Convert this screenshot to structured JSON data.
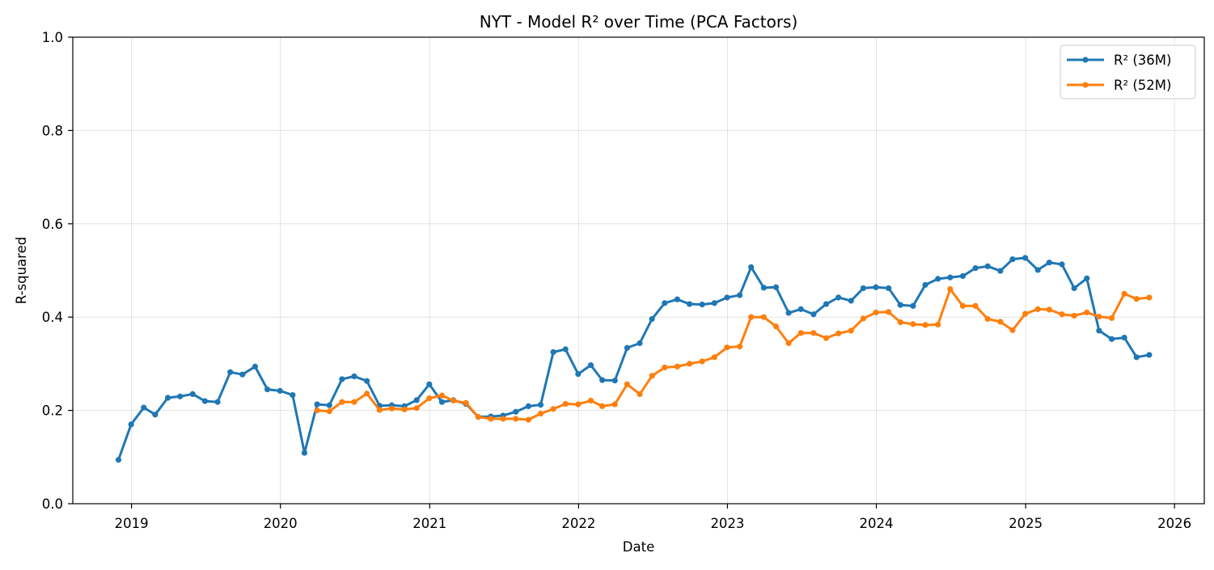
{
  "chart_data": {
    "type": "line",
    "title": "NYT - Model R² over Time (PCA Factors)",
    "xlabel": "Date",
    "ylabel": "R-squared",
    "xlim": [
      "2018-08-10",
      "2026-03-15"
    ],
    "ylim": [
      0,
      1
    ],
    "x_ticks": [
      {
        "label": "2019",
        "date": "2019-01-01"
      },
      {
        "label": "2020",
        "date": "2020-01-01"
      },
      {
        "label": "2021",
        "date": "2021-01-01"
      },
      {
        "label": "2022",
        "date": "2022-01-01"
      },
      {
        "label": "2023",
        "date": "2023-01-01"
      },
      {
        "label": "2024",
        "date": "2024-01-01"
      },
      {
        "label": "2025",
        "date": "2025-01-01"
      },
      {
        "label": "2026",
        "date": "2026-01-01"
      }
    ],
    "y_ticks": [
      "0.0",
      "0.2",
      "0.4",
      "0.6",
      "0.8",
      "1.0"
    ],
    "grid": true,
    "legend_position": "top-right",
    "series": [
      {
        "name": "R² (36M)",
        "color": "#1f77b4",
        "x": [
          "2018-11-30",
          "2018-12-31",
          "2019-01-31",
          "2019-02-28",
          "2019-03-31",
          "2019-04-30",
          "2019-05-31",
          "2019-06-30",
          "2019-07-31",
          "2019-08-31",
          "2019-09-30",
          "2019-10-31",
          "2019-11-30",
          "2019-12-31",
          "2020-01-31",
          "2020-02-29",
          "2020-03-31",
          "2020-04-30",
          "2020-05-31",
          "2020-06-30",
          "2020-07-31",
          "2020-08-31",
          "2020-09-30",
          "2020-10-31",
          "2020-11-30",
          "2020-12-31",
          "2021-01-31",
          "2021-02-28",
          "2021-03-31",
          "2021-04-30",
          "2021-05-31",
          "2021-06-30",
          "2021-07-31",
          "2021-08-31",
          "2021-09-30",
          "2021-10-31",
          "2021-11-30",
          "2021-12-31",
          "2022-01-31",
          "2022-02-28",
          "2022-03-31",
          "2022-04-30",
          "2022-05-31",
          "2022-06-30",
          "2022-07-31",
          "2022-08-31",
          "2022-09-30",
          "2022-10-31",
          "2022-11-30",
          "2022-12-31",
          "2023-01-31",
          "2023-02-28",
          "2023-03-31",
          "2023-04-30",
          "2023-05-31",
          "2023-06-30",
          "2023-07-31",
          "2023-08-31",
          "2023-09-30",
          "2023-10-31",
          "2023-11-30",
          "2023-12-31",
          "2024-01-31",
          "2024-02-29",
          "2024-03-31",
          "2024-04-30",
          "2024-05-31",
          "2024-06-30",
          "2024-07-31",
          "2024-08-31",
          "2024-09-30",
          "2024-10-31",
          "2024-11-30",
          "2024-12-31",
          "2025-01-31",
          "2025-02-28",
          "2025-03-31",
          "2025-04-30",
          "2025-05-31",
          "2025-06-30",
          "2025-07-31",
          "2025-08-31",
          "2025-09-30",
          "2025-10-31"
        ],
        "y": [
          0.094,
          0.17,
          0.206,
          0.191,
          0.227,
          0.23,
          0.235,
          0.22,
          0.218,
          0.282,
          0.277,
          0.294,
          0.245,
          0.242,
          0.233,
          0.109,
          0.213,
          0.211,
          0.267,
          0.273,
          0.263,
          0.21,
          0.211,
          0.209,
          0.222,
          0.256,
          0.218,
          0.222,
          0.214,
          0.186,
          0.187,
          0.189,
          0.197,
          0.209,
          0.212,
          0.325,
          0.331,
          0.278,
          0.297,
          0.265,
          0.264,
          0.334,
          0.344,
          0.396,
          0.43,
          0.438,
          0.428,
          0.427,
          0.43,
          0.442,
          0.447,
          0.507,
          0.463,
          0.464,
          0.409,
          0.417,
          0.406,
          0.428,
          0.442,
          0.435,
          0.462,
          0.464,
          0.462,
          0.426,
          0.424,
          0.469,
          0.482,
          0.485,
          0.488,
          0.505,
          0.509,
          0.499,
          0.524,
          0.527,
          0.501,
          0.517,
          0.513,
          0.462,
          0.483,
          0.371,
          0.353,
          0.356,
          0.314,
          0.319
        ]
      },
      {
        "name": "R² (52M)",
        "color": "#ff7f0e",
        "x": [
          "2020-03-31",
          "2020-04-30",
          "2020-05-31",
          "2020-06-30",
          "2020-07-31",
          "2020-08-31",
          "2020-09-30",
          "2020-10-31",
          "2020-11-30",
          "2020-12-31",
          "2021-01-31",
          "2021-02-28",
          "2021-03-31",
          "2021-04-30",
          "2021-05-31",
          "2021-06-30",
          "2021-07-31",
          "2021-08-31",
          "2021-09-30",
          "2021-10-31",
          "2021-11-30",
          "2021-12-31",
          "2022-01-31",
          "2022-02-28",
          "2022-03-31",
          "2022-04-30",
          "2022-05-31",
          "2022-06-30",
          "2022-07-31",
          "2022-08-31",
          "2022-09-30",
          "2022-10-31",
          "2022-11-30",
          "2022-12-31",
          "2023-01-31",
          "2023-02-28",
          "2023-03-31",
          "2023-04-30",
          "2023-05-31",
          "2023-06-30",
          "2023-07-31",
          "2023-08-31",
          "2023-09-30",
          "2023-10-31",
          "2023-11-30",
          "2023-12-31",
          "2024-01-31",
          "2024-02-29",
          "2024-03-31",
          "2024-04-30",
          "2024-05-31",
          "2024-06-30",
          "2024-07-31",
          "2024-08-31",
          "2024-09-30",
          "2024-10-31",
          "2024-11-30",
          "2024-12-31",
          "2025-01-31",
          "2025-02-28",
          "2025-03-31",
          "2025-04-30",
          "2025-05-31",
          "2025-06-30",
          "2025-07-31",
          "2025-08-31",
          "2025-09-30",
          "2025-10-31"
        ],
        "y": [
          0.2,
          0.198,
          0.218,
          0.218,
          0.236,
          0.201,
          0.204,
          0.202,
          0.205,
          0.226,
          0.232,
          0.221,
          0.216,
          0.186,
          0.182,
          0.182,
          0.182,
          0.18,
          0.193,
          0.203,
          0.214,
          0.213,
          0.221,
          0.209,
          0.213,
          0.256,
          0.235,
          0.274,
          0.292,
          0.294,
          0.3,
          0.305,
          0.314,
          0.335,
          0.337,
          0.4,
          0.4,
          0.38,
          0.344,
          0.366,
          0.366,
          0.355,
          0.365,
          0.371,
          0.397,
          0.41,
          0.411,
          0.389,
          0.385,
          0.383,
          0.384,
          0.46,
          0.424,
          0.424,
          0.396,
          0.39,
          0.372,
          0.407,
          0.417,
          0.416,
          0.406,
          0.403,
          0.41,
          0.401,
          0.398,
          0.45,
          0.439,
          0.442
        ]
      }
    ]
  }
}
